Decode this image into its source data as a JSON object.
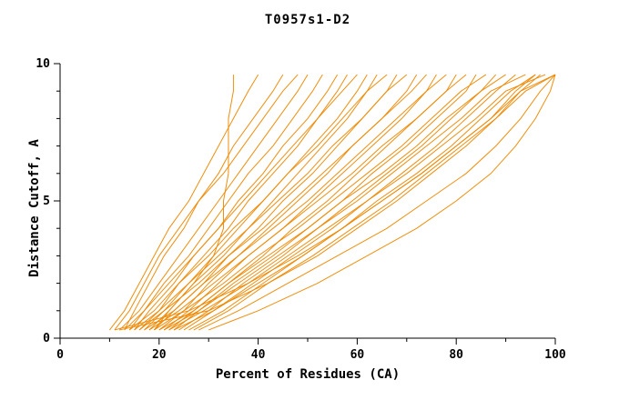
{
  "title": "T0957s1-D2",
  "chart_data": {
    "type": "line",
    "title": "T0957s1-D2",
    "xlabel": "Percent of Residues (CA)",
    "ylabel": "Distance Cutoff, A",
    "xlim": [
      0,
      100
    ],
    "ylim": [
      0,
      10
    ],
    "x_major_ticks": [
      0,
      20,
      40,
      60,
      80,
      100
    ],
    "x_minor_ticks": [
      10,
      30,
      50,
      70,
      90
    ],
    "y_major_ticks": [
      0,
      5,
      10
    ],
    "y_minor_ticks": [
      1,
      2,
      3,
      4,
      6,
      7,
      8,
      9
    ],
    "grid": false,
    "legend": "none",
    "line_color": "#ee8800",
    "axis_color": "#000000",
    "text_color": "#000000",
    "background": "#ffffff",
    "y_values": [
      0.3,
      1,
      2,
      3,
      4,
      5,
      6,
      7,
      8,
      9,
      9.6
    ],
    "series_x": [
      [
        19,
        22,
        27,
        31,
        33,
        33,
        34,
        34,
        34,
        35,
        35
      ],
      [
        10,
        13,
        16,
        19,
        22,
        26,
        29,
        32,
        35,
        38,
        40
      ],
      [
        13,
        15,
        18,
        21,
        25,
        28,
        32,
        35,
        39,
        43,
        45
      ],
      [
        11,
        14,
        17,
        20,
        24,
        28,
        33,
        37,
        41,
        45,
        48
      ],
      [
        12,
        16,
        20,
        24,
        28,
        32,
        36,
        40,
        44,
        48,
        50
      ],
      [
        14,
        17,
        21,
        26,
        30,
        34,
        38,
        43,
        47,
        51,
        53
      ],
      [
        15,
        18,
        23,
        27,
        32,
        36,
        41,
        45,
        50,
        54,
        56
      ],
      [
        16,
        20,
        24,
        29,
        34,
        38,
        43,
        48,
        52,
        56,
        58
      ],
      [
        13,
        17,
        22,
        27,
        32,
        37,
        42,
        47,
        52,
        57,
        60
      ],
      [
        17,
        21,
        26,
        31,
        36,
        41,
        46,
        51,
        56,
        60,
        62
      ],
      [
        18,
        22,
        27,
        33,
        38,
        43,
        48,
        53,
        58,
        62,
        64
      ],
      [
        14,
        19,
        24,
        30,
        35,
        41,
        46,
        52,
        57,
        62,
        66
      ],
      [
        19,
        23,
        29,
        34,
        40,
        45,
        51,
        56,
        61,
        66,
        68
      ],
      [
        15,
        20,
        26,
        32,
        38,
        44,
        50,
        55,
        61,
        66,
        70
      ],
      [
        20,
        25,
        30,
        36,
        42,
        48,
        54,
        59,
        65,
        70,
        72
      ],
      [
        16,
        21,
        28,
        34,
        41,
        47,
        53,
        59,
        65,
        71,
        74
      ],
      [
        21,
        26,
        32,
        38,
        45,
        51,
        57,
        63,
        69,
        74,
        76
      ],
      [
        17,
        23,
        29,
        36,
        43,
        50,
        56,
        62,
        68,
        74,
        78
      ],
      [
        22,
        27,
        34,
        41,
        47,
        54,
        60,
        66,
        72,
        78,
        80
      ],
      [
        18,
        24,
        31,
        38,
        45,
        52,
        59,
        65,
        72,
        78,
        82
      ],
      [
        23,
        28,
        35,
        43,
        50,
        57,
        63,
        70,
        76,
        82,
        84
      ],
      [
        19,
        25,
        33,
        40,
        48,
        55,
        62,
        69,
        75,
        81,
        86
      ],
      [
        24,
        30,
        37,
        45,
        52,
        59,
        66,
        73,
        79,
        85,
        88
      ],
      [
        20,
        27,
        34,
        42,
        50,
        57,
        65,
        72,
        78,
        85,
        90
      ],
      [
        25,
        31,
        39,
        47,
        55,
        62,
        69,
        76,
        82,
        88,
        92
      ],
      [
        21,
        28,
        36,
        44,
        52,
        60,
        67,
        74,
        81,
        87,
        94
      ],
      [
        26,
        33,
        41,
        49,
        57,
        64,
        72,
        79,
        85,
        91,
        96
      ],
      [
        22,
        29,
        38,
        46,
        54,
        62,
        70,
        77,
        84,
        90,
        98
      ],
      [
        27,
        34,
        42,
        51,
        59,
        67,
        74,
        81,
        88,
        94,
        100
      ],
      [
        23,
        31,
        40,
        49,
        57,
        65,
        73,
        80,
        87,
        93,
        100
      ],
      [
        28,
        36,
        46,
        56,
        66,
        74,
        82,
        88,
        93,
        97,
        100
      ],
      [
        30,
        40,
        52,
        62,
        72,
        80,
        87,
        92,
        96,
        99,
        100
      ],
      [
        12,
        30,
        42,
        52,
        60,
        68,
        75,
        82,
        88,
        93,
        97
      ],
      [
        11,
        26,
        38,
        48,
        57,
        65,
        73,
        80,
        87,
        92,
        96
      ]
    ]
  }
}
